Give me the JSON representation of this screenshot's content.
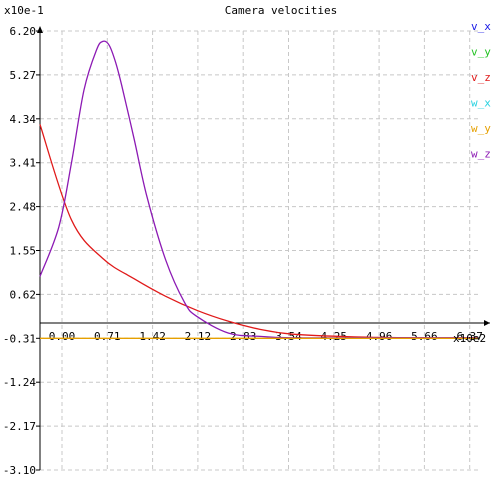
{
  "chart_data": {
    "type": "line",
    "title": "Camera velocities",
    "y_multiplier_label": "x10e-1",
    "x_multiplier_label": "x10e2",
    "xlim": [
      0,
      0.697
    ],
    "ylim": [
      -3.1,
      6.2
    ],
    "x_ticks": [
      "0.00",
      "0.71",
      "1.42",
      "2.12",
      "2.83",
      "3.54",
      "4.25",
      "4.96",
      "5.66",
      "6.37"
    ],
    "y_ticks": [
      "6.20",
      "5.27",
      "4.34",
      "3.41",
      "2.48",
      "1.55",
      "0.62",
      "-0.31",
      "-1.24",
      "-2.17",
      "-3.10"
    ],
    "grid": true,
    "legend_position": "right",
    "legend": [
      {
        "name": "v_x",
        "color": "#1a1ae6"
      },
      {
        "name": "v_y",
        "color": "#22c322"
      },
      {
        "name": "v_z",
        "color": "#e01a1a"
      },
      {
        "name": "w_x",
        "color": "#28d2e0"
      },
      {
        "name": "w_y",
        "color": "#e6a000"
      },
      {
        "name": "w_z",
        "color": "#8c1ab4"
      }
    ],
    "series": [
      {
        "name": "v_z",
        "color": "#e01a1a",
        "x": [
          0.0,
          0.05,
          0.1,
          0.15,
          0.2,
          0.25,
          0.3,
          0.35,
          0.4,
          0.5,
          0.6,
          0.697
        ],
        "y": [
          4.22,
          2.2,
          1.38,
          0.95,
          0.58,
          0.28,
          0.05,
          -0.12,
          -0.22,
          -0.28,
          -0.3,
          -0.3
        ]
      },
      {
        "name": "w_z",
        "color": "#8c1ab4",
        "x": [
          0.0,
          0.03,
          0.05,
          0.07,
          0.09,
          0.1,
          0.11,
          0.12,
          0.13,
          0.15,
          0.17,
          0.2,
          0.23,
          0.25,
          0.3,
          0.35,
          0.4,
          0.5,
          0.6,
          0.697
        ],
        "y": [
          1.0,
          2.05,
          3.4,
          4.95,
          5.8,
          5.98,
          5.9,
          5.55,
          5.05,
          3.9,
          2.7,
          1.35,
          0.45,
          0.15,
          -0.2,
          -0.27,
          -0.3,
          -0.3,
          -0.3,
          -0.3
        ]
      },
      {
        "name": "w_y",
        "color": "#e6a000",
        "x": [
          0.0,
          0.697
        ],
        "y": [
          -0.31,
          -0.31
        ]
      }
    ]
  }
}
